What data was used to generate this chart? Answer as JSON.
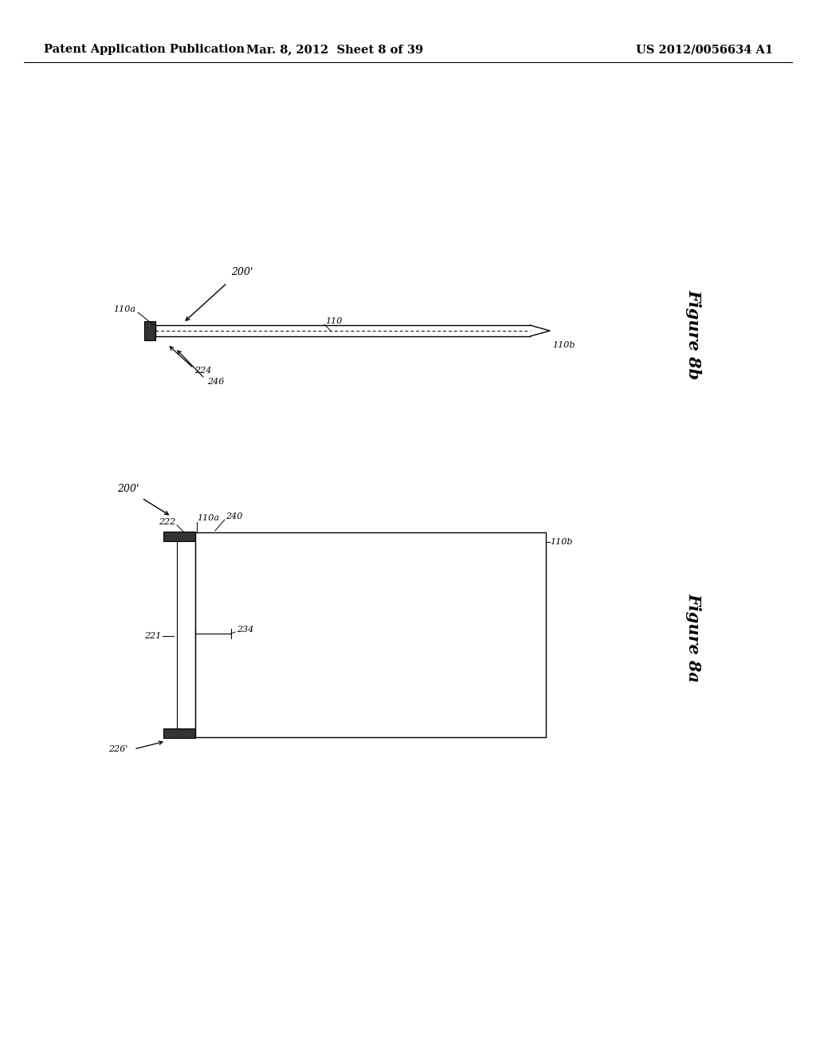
{
  "background_color": "#ffffff",
  "header_left": "Patent Application Publication",
  "header_mid": "Mar. 8, 2012  Sheet 8 of 39",
  "header_right": "US 2012/0056634 A1",
  "header_fontsize": 10.5,
  "figure_8b": {
    "label": "Figure 8b",
    "ref_200": "200'",
    "ref_110a": "110a",
    "ref_110": "110",
    "ref_110b": "110b",
    "ref_224": "224",
    "ref_246": "246"
  },
  "figure_8a": {
    "label": "Figure 8a",
    "ref_200": "200'",
    "ref_222": "222",
    "ref_110a": "110a",
    "ref_240": "240",
    "ref_221": "221",
    "ref_234": "234",
    "ref_110b": "110b",
    "ref_226": "226'"
  }
}
